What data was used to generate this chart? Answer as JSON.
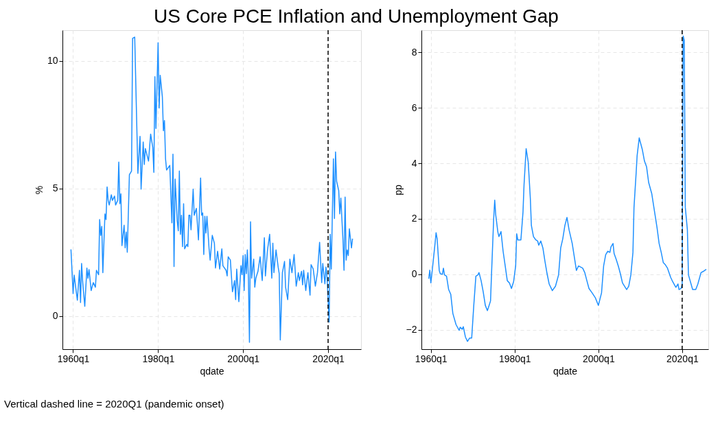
{
  "chart_data": [
    {
      "type": "line",
      "title": "US Core PCE Inflation and Unemployment Gap",
      "xlabel": "qdate",
      "ylabel": "%",
      "grid": true,
      "xlim": [
        "1957-07",
        "2027-10"
      ],
      "xticks": [
        {
          "value": "1960-01",
          "label": "1960q1"
        },
        {
          "value": "1980-01",
          "label": "1980q1"
        },
        {
          "value": "2000-01",
          "label": "2000q1"
        },
        {
          "value": "2020-01",
          "label": "2020q1"
        }
      ],
      "ylim": [
        -1.3,
        11.2
      ],
      "yticks": [
        0,
        5,
        10
      ],
      "ref_lines": [
        {
          "axis": "x",
          "value": "2020-01",
          "color": "#000000",
          "line_style": "dashed"
        }
      ],
      "annotations": [
        "Vertical dashed line = 2020Q1 (pandemic onset)"
      ],
      "series": [
        {
          "color": "#1e90ff",
          "x": [
            "1959-07",
            "1960-01",
            "1960-04",
            "1961-01",
            "1961-07",
            "1961-10",
            "1962-01",
            "1962-04",
            "1962-10",
            "1963-04",
            "1963-07",
            "1963-10",
            "1964-04",
            "1964-10",
            "1965-04",
            "1965-07",
            "1966-01",
            "1966-04",
            "1966-07",
            "1966-10",
            "1967-01",
            "1967-07",
            "1967-10",
            "1968-01",
            "1968-04",
            "1968-07",
            "1969-01",
            "1969-04",
            "1969-10",
            "1970-01",
            "1970-07",
            "1970-10",
            "1971-01",
            "1971-04",
            "1971-07",
            "1972-01",
            "1972-04",
            "1972-07",
            "1972-10",
            "1973-04",
            "1973-10",
            "1974-01",
            "1974-07",
            "1975-04",
            "1975-10",
            "1976-01",
            "1976-07",
            "1976-10",
            "1977-01",
            "1977-10",
            "1978-04",
            "1978-10",
            "1979-01",
            "1979-04",
            "1979-07",
            "1980-01",
            "1980-04",
            "1980-07",
            "1981-01",
            "1981-04",
            "1981-07",
            "1981-10",
            "1982-01",
            "1982-10",
            "1983-04",
            "1983-07",
            "1983-10",
            "1984-01",
            "1984-07",
            "1984-10",
            "1985-01",
            "1985-04",
            "1985-07",
            "1985-10",
            "1986-01",
            "1986-04",
            "1986-10",
            "1987-01",
            "1987-04",
            "1987-07",
            "1987-10",
            "1988-04",
            "1988-07",
            "1989-01",
            "1989-07",
            "1990-01",
            "1990-04",
            "1990-07",
            "1990-10",
            "1991-01",
            "1991-04",
            "1991-07",
            "1992-01",
            "1992-04",
            "1992-10",
            "1993-04",
            "1993-07",
            "1994-01",
            "1994-07",
            "1995-01",
            "1995-04",
            "1996-01",
            "1996-04",
            "1996-07",
            "1997-01",
            "1997-07",
            "1998-01",
            "1998-04",
            "1998-07",
            "1999-01",
            "1999-07",
            "1999-10",
            "2000-01",
            "2000-04",
            "2000-07",
            "2000-10",
            "2001-01",
            "2001-04",
            "2001-07",
            "2001-10",
            "2002-01",
            "2002-07",
            "2002-10",
            "2003-01",
            "2003-07",
            "2004-01",
            "2004-07",
            "2005-01",
            "2005-04",
            "2005-10",
            "2006-04",
            "2006-10",
            "2007-01",
            "2007-04",
            "2007-10",
            "2008-04",
            "2008-07",
            "2008-10",
            "2009-04",
            "2009-10",
            "2010-01",
            "2010-07",
            "2011-01",
            "2011-07",
            "2012-01",
            "2012-07",
            "2013-01",
            "2013-04",
            "2013-10",
            "2014-01",
            "2014-04",
            "2014-10",
            "2015-04",
            "2015-10",
            "2016-01",
            "2016-07",
            "2017-01",
            "2017-07",
            "2018-01",
            "2018-07",
            "2018-10",
            "2019-04",
            "2019-07",
            "2019-10",
            "2020-04",
            "2020-07",
            "2020-10",
            "2021-04",
            "2021-07",
            "2021-10",
            "2022-01",
            "2022-07",
            "2022-10",
            "2023-01",
            "2023-07",
            "2023-10",
            "2024-01",
            "2024-04",
            "2024-07",
            "2024-10",
            "2025-01",
            "2025-07",
            "2025-10"
          ],
          "values": [
            2.61,
            0.88,
            1.6,
            0.62,
            1.79,
            0.53,
            2.06,
            1.35,
            0.38,
            1.88,
            1.48,
            1.82,
            1.0,
            1.31,
            1.13,
            1.79,
            1.62,
            3.78,
            3.16,
            3.51,
            1.7,
            4.0,
            3.78,
            5.06,
            4.53,
            4.35,
            4.75,
            4.53,
            4.7,
            4.35,
            4.53,
            6.03,
            4.4,
            4.79,
            2.76,
            3.56,
            2.67,
            3.29,
            2.5,
            5.54,
            5.68,
            10.88,
            10.93,
            5.59,
            7.04,
            4.97,
            6.82,
            5.94,
            6.56,
            6.07,
            7.13,
            6.6,
            5.63,
            9.38,
            7.35,
            10.71,
            8.15,
            9.43,
            8.59,
            7.26,
            7.66,
            6.16,
            5.72,
            5.9,
            3.65,
            6.34,
            1.94,
            5.37,
            3.73,
            3.34,
            5.68,
            3.2,
            3.95,
            2.72,
            4.4,
            2.63,
            2.81,
            2.72,
            3.95,
            3.95,
            3.38,
            4.97,
            3.95,
            4.22,
            2.98,
            5.41,
            3.95,
            4.04,
            2.41,
            3.91,
            3.25,
            3.91,
            2.63,
            2.19,
            3.16,
            2.85,
            1.88,
            2.54,
            1.84,
            2.63,
            1.97,
            1.79,
            1.57,
            2.32,
            2.19,
            0.95,
            1.39,
            0.64,
            1.84,
            0.56,
            1.97,
            1.62,
            2.37,
            1.0,
            2.41,
            1.66,
            2.59,
            1.48,
            -1.03,
            3.69,
            1.48,
            2.23,
            1.13,
            1.48,
            1.75,
            2.32,
            1.39,
            3.07,
            1.57,
            2.59,
            3.2,
            1.48,
            2.85,
            1.7,
            2.59,
            1.92,
            1.66,
            -0.94,
            1.7,
            2.14,
            1.13,
            0.64,
            2.23,
            1.7,
            2.41,
            1.17,
            1.7,
            1.39,
            1.75,
            1.22,
            1.79,
            1.0,
            1.7,
            0.82,
            2.01,
            1.84,
            1.17,
            1.7,
            2.89,
            1.31,
            2.06,
            1.26,
            1.92,
            1.53,
            -0.24,
            3.2,
            1.84,
            6.16,
            3.82,
            6.43,
            5.28,
            4.92,
            4.0,
            4.62,
            2.98,
            1.79,
            4.66,
            2.19,
            2.59,
            2.37,
            3.42,
            2.67,
            3.03
          ]
        }
      ]
    },
    {
      "type": "line",
      "xlabel": "qdate",
      "ylabel": "pp",
      "grid": true,
      "xlim": [
        "1957-10",
        "2026-04"
      ],
      "xticks": [
        {
          "value": "1960-01",
          "label": "1960q1"
        },
        {
          "value": "1980-01",
          "label": "1980q1"
        },
        {
          "value": "2000-01",
          "label": "2000q1"
        },
        {
          "value": "2020-01",
          "label": "2020q1"
        }
      ],
      "ylim": [
        -2.7,
        8.8
      ],
      "yticks": [
        -2,
        0,
        2,
        4,
        6,
        8
      ],
      "ref_lines": [
        {
          "axis": "x",
          "value": "2020-01",
          "color": "#000000",
          "line_style": "dashed"
        }
      ],
      "series": [
        {
          "color": "#1e90ff",
          "x": [
            "1959-07",
            "1959-10",
            "1960-01",
            "1960-04",
            "1961-01",
            "1961-04",
            "1961-07",
            "1962-01",
            "1962-04",
            "1962-10",
            "1963-01",
            "1963-04",
            "1963-10",
            "1964-04",
            "1964-10",
            "1965-04",
            "1966-01",
            "1966-10",
            "1967-01",
            "1967-07",
            "1967-10",
            "1968-04",
            "1968-10",
            "1969-04",
            "1969-10",
            "1970-04",
            "1970-10",
            "1971-04",
            "1971-07",
            "1972-01",
            "1972-07",
            "1973-01",
            "1973-07",
            "1973-10",
            "1974-04",
            "1974-07",
            "1975-01",
            "1975-04",
            "1975-07",
            "1976-01",
            "1976-04",
            "1976-10",
            "1977-04",
            "1977-10",
            "1978-04",
            "1978-10",
            "1979-04",
            "1979-10",
            "1980-04",
            "1980-07",
            "1980-10",
            "1981-07",
            "1982-01",
            "1982-04",
            "1982-10",
            "1983-04",
            "1983-10",
            "1984-01",
            "1984-07",
            "1985-01",
            "1985-07",
            "1985-10",
            "1986-04",
            "1986-10",
            "1987-04",
            "1987-10",
            "1988-04",
            "1989-01",
            "1989-10",
            "1990-07",
            "1991-01",
            "1991-07",
            "1992-01",
            "1992-07",
            "1993-01",
            "1993-10",
            "1994-04",
            "1994-10",
            "1995-04",
            "1996-04",
            "1996-10",
            "1997-04",
            "1997-10",
            "1998-07",
            "1999-04",
            "2000-01",
            "2000-10",
            "2001-04",
            "2001-10",
            "2002-04",
            "2002-10",
            "2003-01",
            "2003-07",
            "2003-10",
            "2004-04",
            "2004-10",
            "2005-04",
            "2005-10",
            "2006-10",
            "2007-04",
            "2007-10",
            "2008-04",
            "2008-07",
            "2009-01",
            "2009-04",
            "2009-10",
            "2010-01",
            "2010-07",
            "2011-01",
            "2011-07",
            "2012-01",
            "2012-10",
            "2013-04",
            "2014-01",
            "2014-07",
            "2015-01",
            "2015-07",
            "2016-01",
            "2016-07",
            "2017-04",
            "2017-10",
            "2018-07",
            "2019-01",
            "2019-04",
            "2019-10",
            "2020-01",
            "2020-04",
            "2020-07",
            "2020-10",
            "2021-04",
            "2021-07",
            "2022-07",
            "2023-04",
            "2023-10",
            "2024-07",
            "2025-01",
            "2025-10"
          ],
          "values": [
            -0.16,
            0.15,
            -0.31,
            0.02,
            1.11,
            1.5,
            1.28,
            0.14,
            0.02,
            0,
            0.22,
            -0.02,
            -0.07,
            -0.55,
            -0.72,
            -1.41,
            -1.81,
            -2.02,
            -1.91,
            -1.98,
            -1.89,
            -2.26,
            -2.42,
            -2.3,
            -2.3,
            -1.12,
            -0.07,
            -0.02,
            0.06,
            -0.23,
            -0.63,
            -1.12,
            -1.31,
            -1.2,
            -0.96,
            0.06,
            2.01,
            2.67,
            2.13,
            1.52,
            1.36,
            1.54,
            0.83,
            0.3,
            -0.23,
            -0.31,
            -0.51,
            -0.27,
            0.3,
            1.46,
            1.24,
            1.24,
            2.25,
            3.23,
            4.53,
            4.04,
            2.74,
            1.76,
            1.36,
            1.25,
            1.2,
            1.05,
            1.2,
            0.95,
            0.46,
            0.02,
            -0.35,
            -0.59,
            -0.43,
            -0.02,
            0.95,
            1.28,
            1.76,
            2.05,
            1.6,
            1.11,
            0.63,
            0.14,
            0.3,
            0.22,
            0.06,
            -0.23,
            -0.51,
            -0.67,
            -0.84,
            -1.12,
            -0.67,
            0.3,
            0.71,
            0.83,
            0.79,
            0.99,
            1.11,
            0.75,
            0.54,
            0.3,
            0.02,
            -0.31,
            -0.55,
            -0.43,
            -0.02,
            0.79,
            2.41,
            3.63,
            4.28,
            4.92,
            4.77,
            4.49,
            4.08,
            3.88,
            3.31,
            2.9,
            2.41,
            1.68,
            1.11,
            0.79,
            0.42,
            0.34,
            0.22,
            -0.11,
            -0.27,
            -0.47,
            -0.35,
            -0.55,
            -0.51,
            -0.35,
            8.59,
            8.43,
            2.41,
            1.6,
            -0.02,
            -0.55,
            -0.55,
            -0.35,
            0.06,
            0.1,
            0.18
          ]
        }
      ]
    }
  ]
}
